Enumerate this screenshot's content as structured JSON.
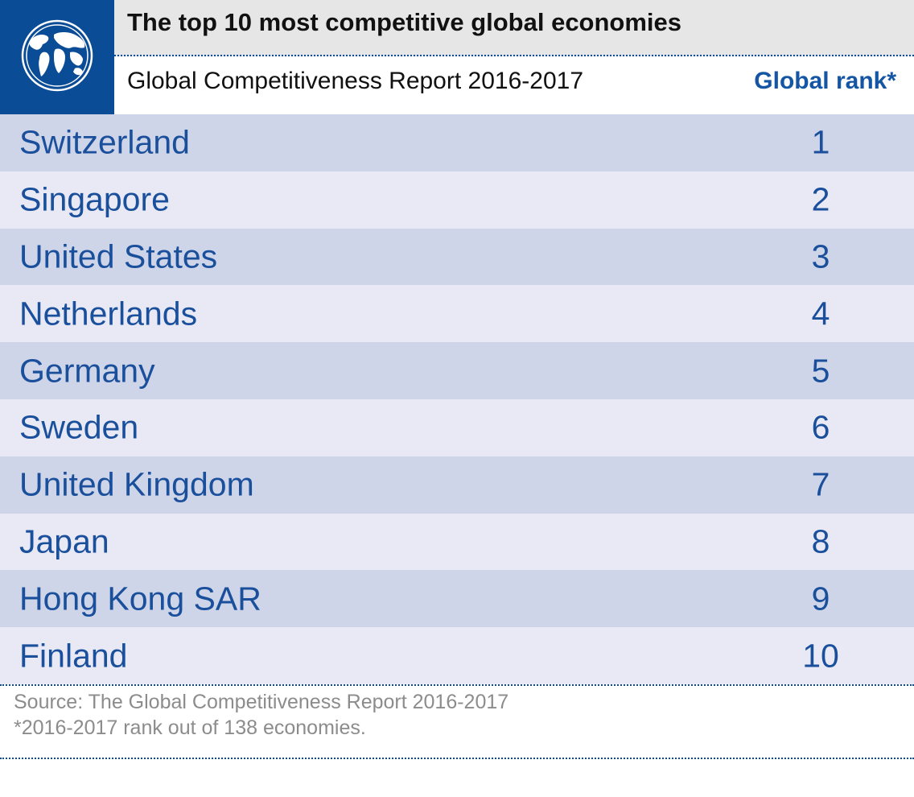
{
  "header": {
    "title": "The top 10 most competitive global economies",
    "subtitle": "Global Competitiveness Report 2016-2017",
    "column_header": "Global rank*",
    "logo_icon": "globe-icon"
  },
  "colors": {
    "brand_blue": "#0b4c97",
    "text_blue": "#1a4f9c",
    "row_dark": "#cfd5e8",
    "row_light": "#e8e9f4"
  },
  "chart_data": {
    "type": "table",
    "title": "The top 10 most competitive global economies",
    "subtitle": "Global Competitiveness Report 2016-2017",
    "columns": [
      "",
      "Global rank*"
    ],
    "rows": [
      {
        "country": "Switzerland",
        "rank": "1"
      },
      {
        "country": "Singapore",
        "rank": "2"
      },
      {
        "country": "United States",
        "rank": "3"
      },
      {
        "country": "Netherlands",
        "rank": "4"
      },
      {
        "country": "Germany",
        "rank": "5"
      },
      {
        "country": "Sweden",
        "rank": "6"
      },
      {
        "country": "United Kingdom",
        "rank": "7"
      },
      {
        "country": "Japan",
        "rank": "8"
      },
      {
        "country": "Hong Kong SAR",
        "rank": "9"
      },
      {
        "country": "Finland",
        "rank": "10"
      }
    ]
  },
  "footer": {
    "source": "Source: The Global Competitiveness Report 2016-2017",
    "note": "*2016-2017 rank out of 138 economies."
  }
}
